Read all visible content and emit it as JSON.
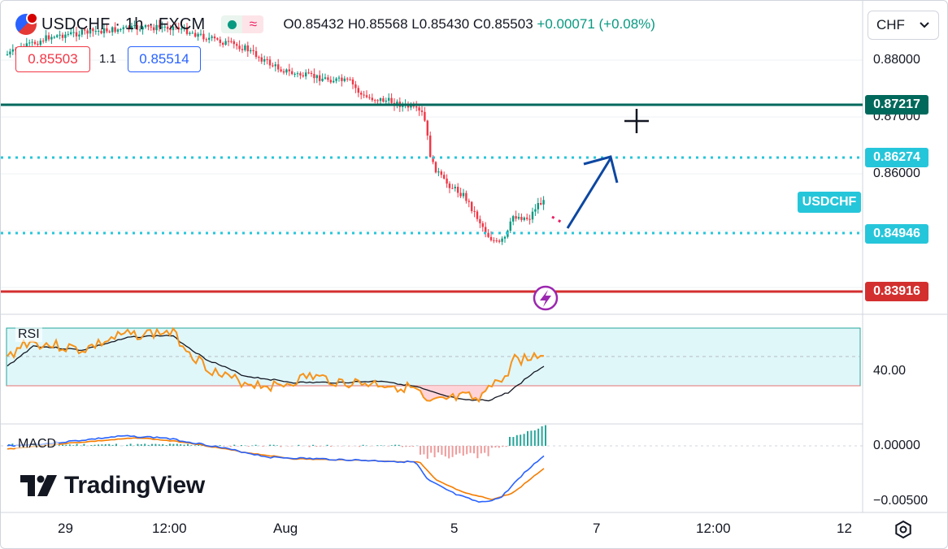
{
  "legend": {
    "title": "USDCHF · 1h · FXCM",
    "ohlc_open": "O0.85432",
    "ohlc_high": "H0.85568",
    "ohlc_low": "L0.85430",
    "ohlc_close": "C0.85503",
    "change": "+0.00071 (+0.08%)"
  },
  "trading": {
    "sell_price": "0.85503",
    "spread": "1.1",
    "buy_price": "0.85514"
  },
  "currency_selector": {
    "value": "CHF",
    "icon": "chevron-down-icon"
  },
  "price_axis": {
    "labels": [
      "0.88000",
      "0.87000",
      "0.86000"
    ],
    "levels": [
      {
        "value": "0.87217",
        "color": "#00695c"
      },
      {
        "value": "0.86274",
        "color": "#26c6da"
      },
      {
        "value": "0.84946",
        "color": "#26c6da"
      },
      {
        "value": "0.83916",
        "color": "#d32f2f"
      }
    ],
    "symbol_tag": "USDCHF"
  },
  "rsi": {
    "label": "RSI",
    "axis_label": "40.00",
    "line_color": "#f7931a",
    "ma_color": "#131722",
    "band_color": "#e0f7fa"
  },
  "macd": {
    "label": "MACD",
    "axis_labels": [
      "0.00000",
      "−0.00500"
    ],
    "macd_color": "#2962ff",
    "signal_color": "#f57c00"
  },
  "time_axis": {
    "labels": [
      "29",
      "12:00",
      "Aug",
      "5",
      "7",
      "12:00",
      "12"
    ]
  },
  "brand": {
    "name": "TradingView"
  },
  "colors": {
    "up": "#089981",
    "down": "#f23645"
  }
}
